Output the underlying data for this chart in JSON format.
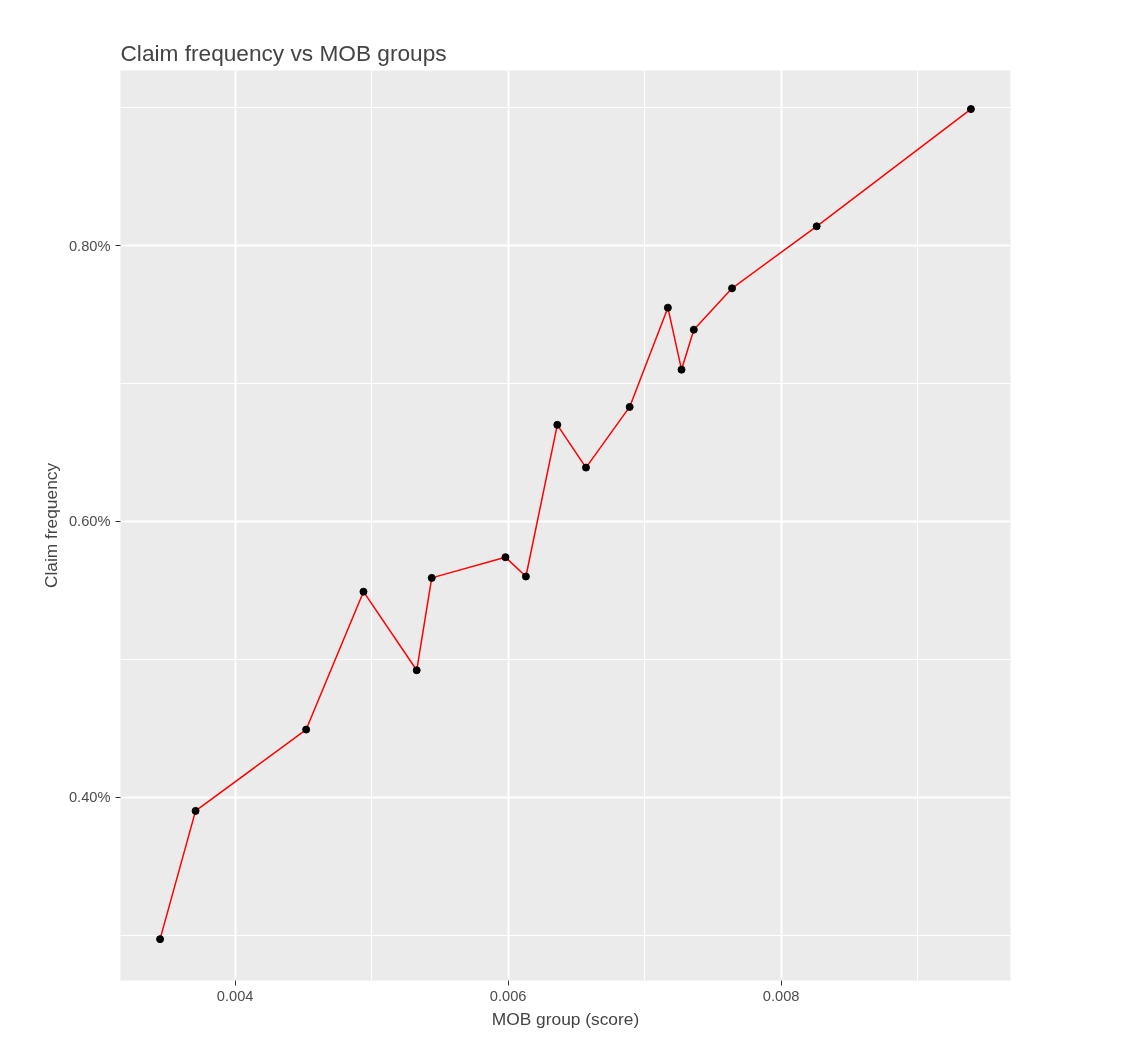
{
  "chart_data": {
    "type": "line",
    "title": "Claim frequency vs MOB groups",
    "xlabel": "MOB group (score)",
    "ylabel": "Claim frequency",
    "x": [
      0.00345,
      0.00371,
      0.00452,
      0.00494,
      0.00533,
      0.00544,
      0.00598,
      0.00613,
      0.00636,
      0.00657,
      0.00689,
      0.00717,
      0.00727,
      0.00736,
      0.00764,
      0.00826,
      0.00939
    ],
    "series": [
      {
        "color": "#ff0000",
        "values": [
          0.297,
          0.39,
          0.449,
          0.549,
          0.492,
          0.559,
          0.574,
          0.56,
          0.67,
          0.639,
          0.683,
          0.755,
          0.71,
          0.739,
          0.769,
          0.814,
          0.899
        ]
      }
    ],
    "marker": "circle",
    "line_style": "solid",
    "grid": true,
    "xlim": [
      0.00316,
      0.00968
    ],
    "ylim": [
      0.267,
      0.927
    ],
    "xticks": [
      {
        "value": 0.004,
        "label": "0.004"
      },
      {
        "value": 0.005,
        "label": null
      },
      {
        "value": 0.006,
        "label": "0.006"
      },
      {
        "value": 0.007,
        "label": null
      },
      {
        "value": 0.008,
        "label": "0.008"
      },
      {
        "value": 0.009,
        "label": null
      }
    ],
    "yticks": [
      {
        "value": 0.3,
        "label": null
      },
      {
        "value": 0.4,
        "label": "0.40%"
      },
      {
        "value": 0.5,
        "label": null
      },
      {
        "value": 0.6,
        "label": "0.60%"
      },
      {
        "value": 0.7,
        "label": null
      },
      {
        "value": 0.8,
        "label": "0.80%"
      },
      {
        "value": 0.9,
        "label": null
      }
    ]
  }
}
